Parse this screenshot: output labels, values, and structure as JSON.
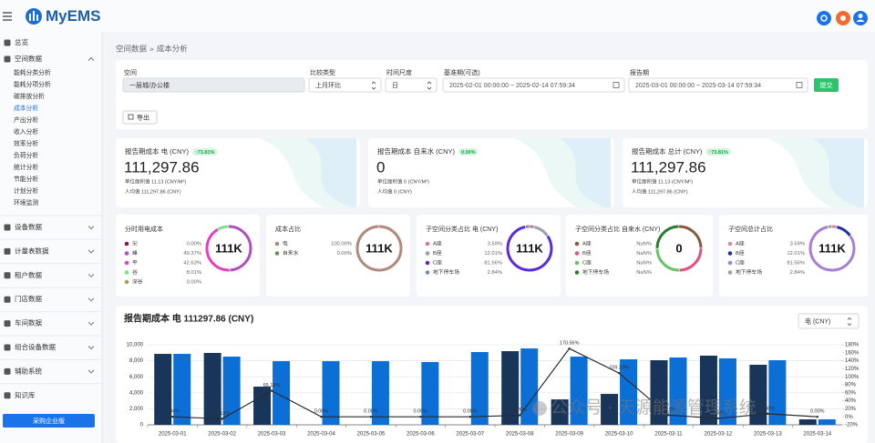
{
  "header": {
    "logo": "MyEMS"
  },
  "sidebar": {
    "menu": [
      {
        "label": "总览"
      },
      {
        "label": "空间数据",
        "expandable": true,
        "children": [
          {
            "label": "能耗分类分析"
          },
          {
            "label": "能耗分项分析"
          },
          {
            "label": "碳排放分析"
          },
          {
            "label": "成本分析",
            "active": true
          },
          {
            "label": "产出分析"
          },
          {
            "label": "收入分析"
          },
          {
            "label": "效率分析"
          },
          {
            "label": "负荷分析"
          },
          {
            "label": "统计分析"
          },
          {
            "label": "节能分析"
          },
          {
            "label": "计划分析"
          },
          {
            "label": "环境监测"
          }
        ]
      },
      {
        "label": "设备数据",
        "expandable": true
      },
      {
        "label": "计量表数据",
        "expandable": true
      },
      {
        "label": "租户数据",
        "expandable": true
      },
      {
        "label": "门店数据",
        "expandable": true
      },
      {
        "label": "车间数据",
        "expandable": true
      },
      {
        "label": "组合设备数据",
        "expandable": true
      },
      {
        "label": "辅助系统",
        "expandable": true
      },
      {
        "label": "知识库"
      }
    ],
    "button": "采购企业版"
  },
  "breadcrumb": {
    "items": [
      "空间数据",
      "成本分析"
    ],
    "separator": "»"
  },
  "filters": [
    {
      "label": "空间",
      "value": "一层城/办公楼"
    },
    {
      "label": "比较类型",
      "value": "上月环比"
    },
    {
      "label": "时间尺度",
      "value": "日"
    },
    {
      "label": "基准期(可选)",
      "value": "2025-02-01 00:00:00 ~ 2025-02-14 07:59:34"
    },
    {
      "label": "报告期",
      "value": "2025-03-01 00:00:00 ~ 2025-03-14 07:59:34"
    }
  ],
  "buttons": {
    "submit": "提交",
    "export": "导出"
  },
  "kpi_cards": [
    {
      "title": "报告期成本 电 (CNY)",
      "badge": "↑73.81%",
      "value": "111,297.86",
      "lines": [
        "单位面积值 11.13 (CNY/M²)",
        "人均值 111,297.86 (CNY)"
      ]
    },
    {
      "title": "报告期成本 自来水 (CNY)",
      "badge": "0.00%",
      "value": "0",
      "lines": [
        "单位面积值 0 (CNY/M²)",
        "人均值 0 (CNY)"
      ]
    },
    {
      "title": "报告期成本 总计 (CNY)",
      "badge": "↑73.81%",
      "value": "111,297.86",
      "lines": [
        "单位面积值 11.13 (CNY/M²)",
        "人均值 111,297.86 (CNY)"
      ]
    }
  ],
  "donut_cards": [
    {
      "title": "分时用电成本",
      "center": "111K",
      "items": [
        {
          "name": "尖",
          "value": "0.00%",
          "color": "#7b1f3a"
        },
        {
          "name": "峰",
          "value": "49.37%",
          "color": "#b24fc0"
        },
        {
          "name": "平",
          "value": "42.63%",
          "color": "#e33fc7"
        },
        {
          "name": "谷",
          "value": "8.01%",
          "color": "#7ee08a"
        },
        {
          "name": "深谷",
          "value": "0.00%",
          "color": "#a89f58"
        }
      ]
    },
    {
      "title": "成本占比",
      "center": "111K",
      "items": [
        {
          "name": "电",
          "value": "100.00%",
          "color": "#b08a7c"
        },
        {
          "name": "自来水",
          "value": "0.00%",
          "color": "#6f8a5a"
        }
      ]
    },
    {
      "title": "子空间分类占比 电 (CNY)",
      "center": "111K",
      "items": [
        {
          "name": "A座",
          "value": "3.59%",
          "color": "#d27b93"
        },
        {
          "name": "B座",
          "value": "12.01%",
          "color": "#9aa0a8"
        },
        {
          "name": "C座",
          "value": "81.56%",
          "color": "#5b2bd9"
        },
        {
          "name": "地下停车场",
          "value": "2.84%",
          "color": "#7a88b0"
        }
      ]
    },
    {
      "title": "子空间分类占比 自来水 (CNY)",
      "center": "0",
      "items": [
        {
          "name": "A座",
          "value": "NaN%",
          "color": "#8a5a40"
        },
        {
          "name": "B座",
          "value": "NaN%",
          "color": "#e0527f"
        },
        {
          "name": "C座",
          "value": "NaN%",
          "color": "#66c466"
        },
        {
          "name": "地下停车场",
          "value": "NaN%",
          "color": "#2e7d32"
        }
      ]
    },
    {
      "title": "子空间总计占比",
      "center": "111K",
      "items": [
        {
          "name": "A座",
          "value": "3.59%",
          "color": "#e083a3"
        },
        {
          "name": "B座",
          "value": "12.01%",
          "color": "#2233a0"
        },
        {
          "name": "C座",
          "value": "81.56%",
          "color": "#a77fd6"
        },
        {
          "name": "地下停车场",
          "value": "2.84%",
          "color": "#a0a0a0"
        }
      ]
    }
  ],
  "chart_data": {
    "type": "bar",
    "title": "报告期成本 电 111297.86 (CNY)",
    "select": "电 (CNY)",
    "categories": [
      "2025-03-01",
      "2025-03-02",
      "2025-03-03",
      "2025-03-04",
      "2025-03-05",
      "2025-03-06",
      "2025-03-07",
      "2025-03-08",
      "2025-03-09",
      "2025-03-10",
      "2025-03-11",
      "2025-03-12",
      "2025-03-13",
      "2025-03-14"
    ],
    "series": [
      {
        "color": "#19365a",
        "values": [
          8860,
          8980,
          4770,
          0,
          0,
          0,
          0,
          9200,
          3180,
          3860,
          8070,
          8640,
          7500,
          680
        ]
      },
      {
        "color": "#0b6fd6",
        "values": [
          8860,
          8520,
          7950,
          7950,
          7950,
          7840,
          9090,
          9540,
          8520,
          8180,
          8410,
          8300,
          8070,
          680
        ]
      },
      {
        "type": "line",
        "axis": "y2",
        "color": "#2b2b2b",
        "values": [
          0.04,
          -5.12,
          65.19,
          0,
          0,
          0,
          0,
          3.7,
          170.56,
          109.32,
          4.21,
          -3.94,
          7.6,
          0
        ],
        "value_labels": [
          "0.04%",
          "-5.12%",
          "65.19%",
          "0.00%",
          "0.00%",
          "0.00%",
          "0.00%",
          "3.70%",
          "170.56%",
          "109.32%",
          "4.21%",
          "-3.94%",
          "7.60%",
          "0.00%"
        ]
      }
    ],
    "ylim": [
      0,
      10000
    ],
    "yticks": [
      0,
      {
        "value": 2000,
        "label": "2,000"
      },
      {
        "value": 4000,
        "label": "4,000"
      },
      {
        "value": 6000,
        "label": "6,000"
      },
      {
        "value": 8000,
        "label": "8,000"
      },
      {
        "value": 10000,
        "label": "10,000"
      }
    ],
    "y2lim": [
      -20,
      180
    ],
    "y2ticks": [
      {
        "value": -20,
        "label": "-20%"
      },
      {
        "value": 0,
        "label": "0%"
      },
      {
        "value": 20,
        "label": "20%"
      },
      {
        "value": 40,
        "label": "40%"
      },
      {
        "value": 60,
        "label": "60%"
      },
      {
        "value": 80,
        "label": "80%"
      },
      {
        "value": 100,
        "label": "100%"
      },
      {
        "value": 120,
        "label": "120%"
      },
      {
        "value": 140,
        "label": "140%"
      },
      {
        "value": 160,
        "label": "160%"
      },
      {
        "value": 180,
        "label": "180%"
      }
    ],
    "grid": true
  },
  "watermark": "公众号 · 天源能源管理系统"
}
